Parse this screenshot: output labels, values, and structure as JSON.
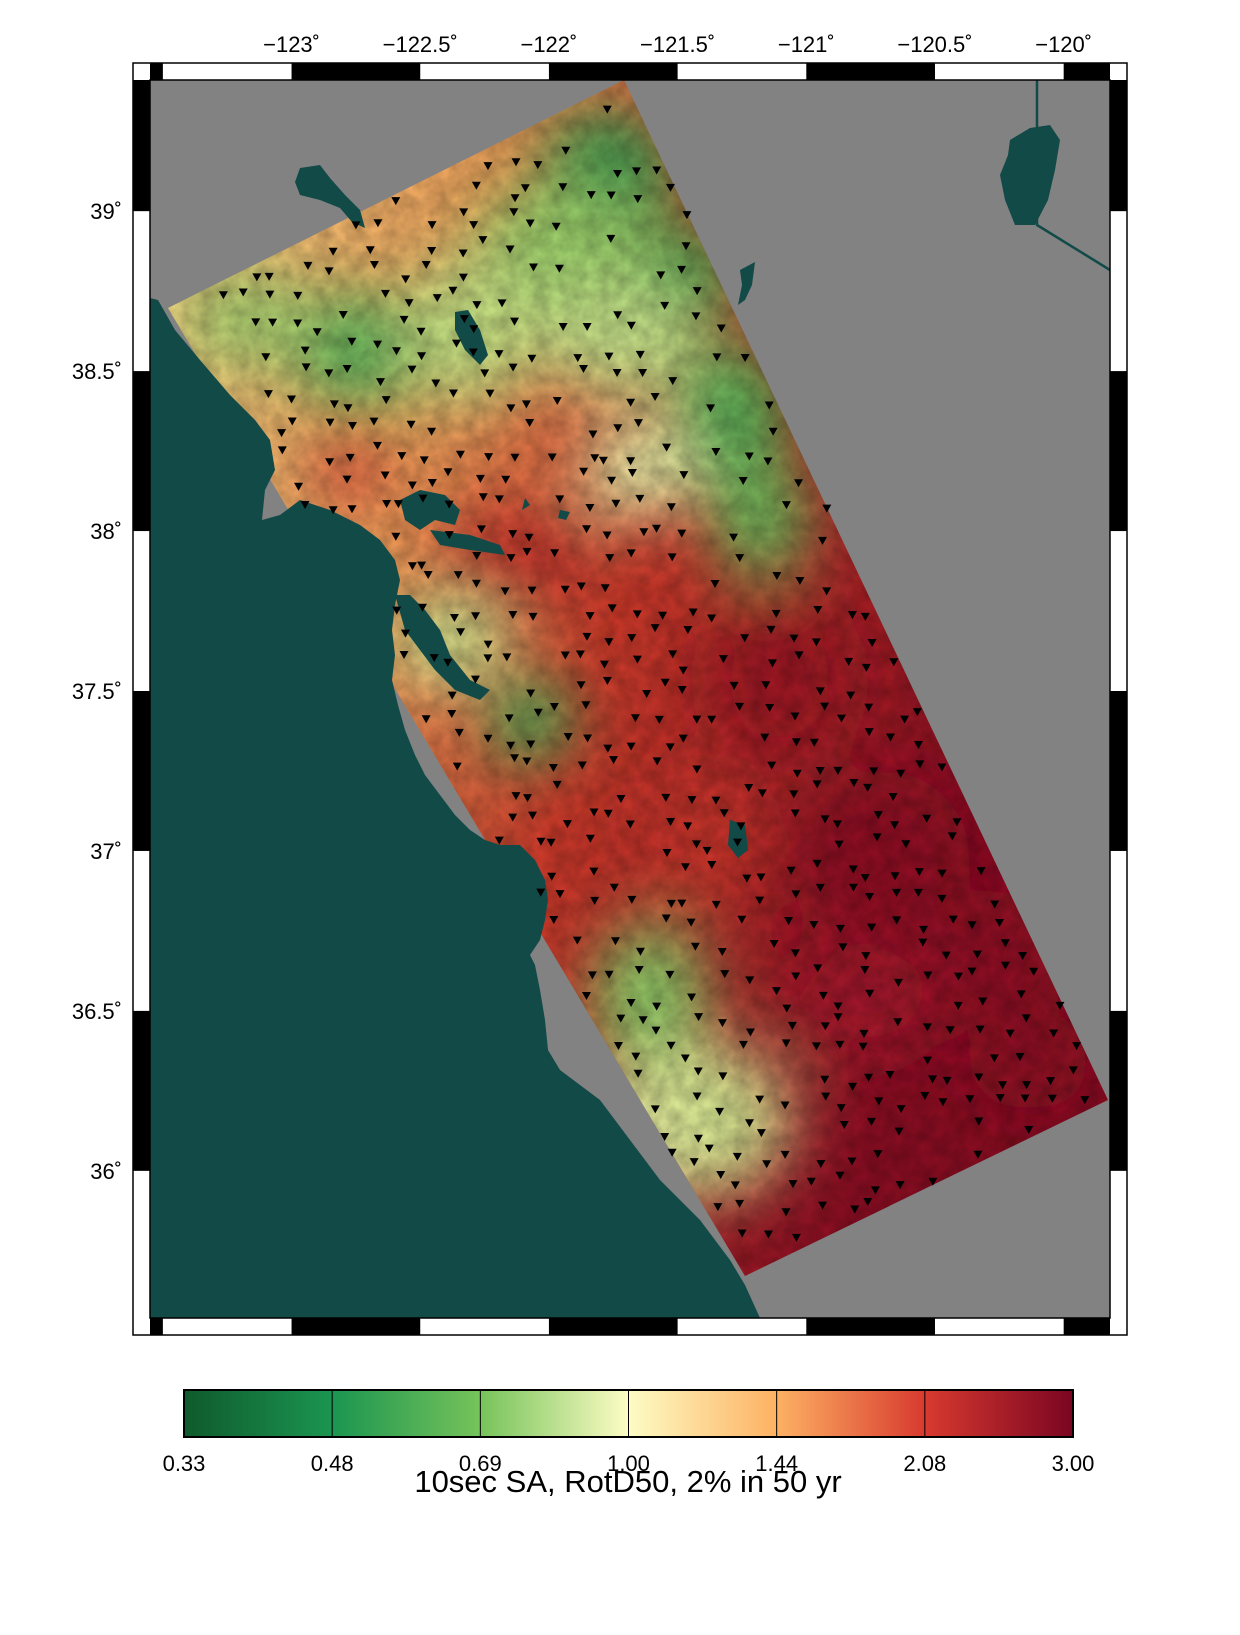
{
  "map": {
    "lon_ticks": [
      {
        "value": -123,
        "label": "−123˚"
      },
      {
        "value": -122.5,
        "label": "−122.5˚"
      },
      {
        "value": -122,
        "label": "−122˚"
      },
      {
        "value": -121.5,
        "label": "−121.5˚"
      },
      {
        "value": -121,
        "label": "−121˚"
      },
      {
        "value": -120.5,
        "label": "−120.5˚"
      },
      {
        "value": -120,
        "label": "−120˚"
      }
    ],
    "lat_ticks": [
      {
        "value": 39,
        "label": "39˚"
      },
      {
        "value": 38.5,
        "label": "38.5˚"
      },
      {
        "value": 38,
        "label": "38˚"
      },
      {
        "value": 37.5,
        "label": "37.5˚"
      },
      {
        "value": 37,
        "label": "37˚"
      },
      {
        "value": 36.5,
        "label": "36.5˚"
      },
      {
        "value": 36,
        "label": "36˚"
      }
    ],
    "lon_range": [
      -123.55,
      -119.82
    ],
    "lat_range": [
      35.54,
      39.41
    ],
    "colors": {
      "ocean": "#124a48",
      "land_outside": "#828282",
      "station": "#000000"
    }
  },
  "colorbar": {
    "title": "10sec SA, RotD50, 2% in 50 yr",
    "labels": [
      "0.33",
      "0.48",
      "0.69",
      "1.00",
      "1.44",
      "2.08",
      "3.00"
    ],
    "scale": "log",
    "colors": [
      "#0f5a2c",
      "#1b9550",
      "#76c35a",
      "#fdfcc4",
      "#fdb163",
      "#d83a2f",
      "#7a0521"
    ]
  }
}
